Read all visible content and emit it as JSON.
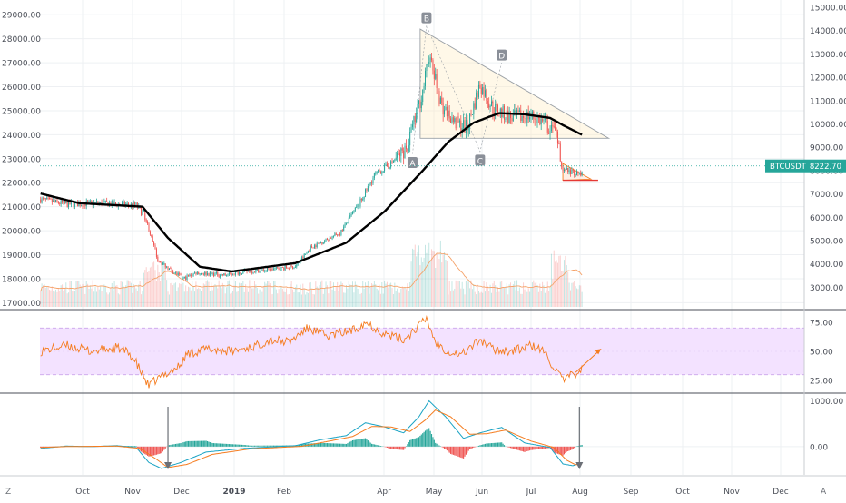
{
  "chart_data": [
    {
      "type": "candlestick",
      "symbol": "BTCUSDT",
      "last_price": "8222.70",
      "left_axis": {
        "ticks": [
          "17000.00",
          "18000.00",
          "19000.00",
          "20000.00",
          "21000.00",
          "22000.00",
          "23000.00",
          "24000.00",
          "25000.00",
          "26000.00",
          "27000.00",
          "28000.00",
          "29000.00"
        ],
        "range": [
          16750,
          29500
        ]
      },
      "right_axis": {
        "ticks": [
          "3000.00",
          "4000.00",
          "5000.00",
          "6000.00",
          "7000.00",
          "8000.00",
          "9000.00",
          "10000.00",
          "11000.00",
          "12000.00",
          "13000.00",
          "14000.00",
          "15000.00"
        ]
      },
      "time_axis": [
        "Oct",
        "Nov",
        "Dec",
        "2019",
        "Feb",
        "Apr",
        "May",
        "Jun",
        "Jul",
        "Aug",
        "Sep",
        "Oct",
        "Nov",
        "Dec"
      ],
      "time_axis_bold": "2019",
      "price_anchors": [
        {
          "t": 0,
          "p": 21300
        },
        {
          "t": 20,
          "p": 21100
        },
        {
          "t": 45,
          "p": 21150
        },
        {
          "t": 75,
          "p": 21050
        },
        {
          "t": 82,
          "p": 20600
        },
        {
          "t": 92,
          "p": 18800
        },
        {
          "t": 100,
          "p": 18450
        },
        {
          "t": 112,
          "p": 18000
        },
        {
          "t": 122,
          "p": 18250
        },
        {
          "t": 145,
          "p": 18150
        },
        {
          "t": 160,
          "p": 18300
        },
        {
          "t": 175,
          "p": 18350
        },
        {
          "t": 200,
          "p": 18500
        },
        {
          "t": 212,
          "p": 19300
        },
        {
          "t": 235,
          "p": 19900
        },
        {
          "t": 250,
          "p": 21100
        },
        {
          "t": 262,
          "p": 22300
        },
        {
          "t": 275,
          "p": 22800
        },
        {
          "t": 288,
          "p": 23500
        },
        {
          "t": 300,
          "p": 25800
        },
        {
          "t": 305,
          "p": 27300
        },
        {
          "t": 315,
          "p": 25200
        },
        {
          "t": 325,
          "p": 24500
        },
        {
          "t": 335,
          "p": 24300
        },
        {
          "t": 345,
          "p": 26100
        },
        {
          "t": 355,
          "p": 25100
        },
        {
          "t": 370,
          "p": 24700
        },
        {
          "t": 385,
          "p": 24800
        },
        {
          "t": 395,
          "p": 24500
        },
        {
          "t": 405,
          "p": 23900
        },
        {
          "t": 410,
          "p": 22500
        },
        {
          "t": 425,
          "p": 22400
        }
      ],
      "moving_average": {
        "color": "#000000",
        "anchors": [
          {
            "t": 0,
            "p": 21550
          },
          {
            "t": 30,
            "p": 21150
          },
          {
            "t": 80,
            "p": 21000
          },
          {
            "t": 100,
            "p": 19700
          },
          {
            "t": 125,
            "p": 18500
          },
          {
            "t": 150,
            "p": 18300
          },
          {
            "t": 200,
            "p": 18650
          },
          {
            "t": 240,
            "p": 19500
          },
          {
            "t": 270,
            "p": 20800
          },
          {
            "t": 300,
            "p": 22500
          },
          {
            "t": 320,
            "p": 23700
          },
          {
            "t": 340,
            "p": 24500
          },
          {
            "t": 360,
            "p": 24900
          },
          {
            "t": 380,
            "p": 24850
          },
          {
            "t": 400,
            "p": 24700
          },
          {
            "t": 410,
            "p": 24400
          },
          {
            "t": 425,
            "p": 24000
          }
        ]
      },
      "pattern_points": [
        {
          "label": "A",
          "t": 292,
          "p": 23200
        },
        {
          "label": "B",
          "t": 303,
          "p": 28550
        },
        {
          "label": "C",
          "t": 345,
          "p": 23300
        },
        {
          "label": "D",
          "t": 362,
          "p": 27000
        }
      ],
      "triangle": {
        "apex": {
          "t": 298,
          "p": 28400
        },
        "base_left": {
          "t": 298,
          "p": 23850
        },
        "right": {
          "t": 446,
          "p": 23850
        }
      },
      "pennant": {
        "start_t": 410,
        "top_p": 22800,
        "bottom_p": 22100,
        "end_t": 432,
        "end_p": 22150
      },
      "volume_range": [
        0,
        100
      ]
    },
    {
      "type": "line",
      "indicator": "RSI",
      "ticks": [
        "25.00",
        "50.00",
        "75.00"
      ],
      "range": [
        15,
        85
      ],
      "band": [
        30,
        70
      ],
      "band_color": "#f3e2ff",
      "line_color": "#f57c1f",
      "anchors": [
        {
          "t": 0,
          "p": 50
        },
        {
          "t": 20,
          "p": 55
        },
        {
          "t": 40,
          "p": 50
        },
        {
          "t": 60,
          "p": 53
        },
        {
          "t": 70,
          "p": 48
        },
        {
          "t": 75,
          "p": 40
        },
        {
          "t": 80,
          "p": 30
        },
        {
          "t": 85,
          "p": 20
        },
        {
          "t": 90,
          "p": 25
        },
        {
          "t": 100,
          "p": 32
        },
        {
          "t": 110,
          "p": 38
        },
        {
          "t": 115,
          "p": 48
        },
        {
          "t": 130,
          "p": 52
        },
        {
          "t": 150,
          "p": 50
        },
        {
          "t": 170,
          "p": 55
        },
        {
          "t": 180,
          "p": 60
        },
        {
          "t": 195,
          "p": 58
        },
        {
          "t": 210,
          "p": 70
        },
        {
          "t": 225,
          "p": 63
        },
        {
          "t": 245,
          "p": 68
        },
        {
          "t": 255,
          "p": 75
        },
        {
          "t": 270,
          "p": 65
        },
        {
          "t": 285,
          "p": 60
        },
        {
          "t": 295,
          "p": 70
        },
        {
          "t": 303,
          "p": 78
        },
        {
          "t": 310,
          "p": 58
        },
        {
          "t": 320,
          "p": 50
        },
        {
          "t": 330,
          "p": 47
        },
        {
          "t": 345,
          "p": 60
        },
        {
          "t": 355,
          "p": 52
        },
        {
          "t": 370,
          "p": 50
        },
        {
          "t": 385,
          "p": 55
        },
        {
          "t": 395,
          "p": 50
        },
        {
          "t": 402,
          "p": 38
        },
        {
          "t": 410,
          "p": 25
        },
        {
          "t": 418,
          "p": 30
        },
        {
          "t": 425,
          "p": 35
        }
      ],
      "trend_arrow": {
        "from": {
          "t": 420,
          "p": 32
        },
        "to": {
          "t": 440,
          "p": 52
        }
      }
    },
    {
      "type": "line",
      "indicator": "MACD",
      "ticks": [
        "0.00",
        "1000.00"
      ],
      "range": [
        -620,
        1150
      ],
      "macd_color": "#19a3c4",
      "signal_color": "#f57c1f",
      "hist_up": "#26a69a",
      "hist_down": "#ef5350",
      "macd_anchors": [
        {
          "t": 0,
          "p": -40
        },
        {
          "t": 20,
          "p": 10
        },
        {
          "t": 40,
          "p": 0
        },
        {
          "t": 60,
          "p": 20
        },
        {
          "t": 75,
          "p": -20
        },
        {
          "t": 85,
          "p": -350
        },
        {
          "t": 95,
          "p": -480
        },
        {
          "t": 110,
          "p": -350
        },
        {
          "t": 130,
          "p": -120
        },
        {
          "t": 160,
          "p": -40
        },
        {
          "t": 200,
          "p": 20
        },
        {
          "t": 220,
          "p": 150
        },
        {
          "t": 240,
          "p": 240
        },
        {
          "t": 255,
          "p": 520
        },
        {
          "t": 270,
          "p": 430
        },
        {
          "t": 285,
          "p": 300
        },
        {
          "t": 297,
          "p": 650
        },
        {
          "t": 305,
          "p": 1000
        },
        {
          "t": 318,
          "p": 650
        },
        {
          "t": 332,
          "p": 180
        },
        {
          "t": 345,
          "p": 300
        },
        {
          "t": 362,
          "p": 420
        },
        {
          "t": 380,
          "p": 80
        },
        {
          "t": 400,
          "p": -20
        },
        {
          "t": 410,
          "p": -380
        },
        {
          "t": 418,
          "p": -420
        },
        {
          "t": 425,
          "p": -350
        }
      ],
      "signal_anchors": [
        {
          "t": 0,
          "p": -20
        },
        {
          "t": 20,
          "p": 0
        },
        {
          "t": 40,
          "p": 5
        },
        {
          "t": 60,
          "p": 10
        },
        {
          "t": 78,
          "p": -40
        },
        {
          "t": 90,
          "p": -260
        },
        {
          "t": 100,
          "p": -460
        },
        {
          "t": 115,
          "p": -390
        },
        {
          "t": 135,
          "p": -170
        },
        {
          "t": 165,
          "p": -50
        },
        {
          "t": 205,
          "p": 5
        },
        {
          "t": 225,
          "p": 110
        },
        {
          "t": 245,
          "p": 220
        },
        {
          "t": 260,
          "p": 440
        },
        {
          "t": 275,
          "p": 430
        },
        {
          "t": 290,
          "p": 330
        },
        {
          "t": 302,
          "p": 580
        },
        {
          "t": 310,
          "p": 800
        },
        {
          "t": 322,
          "p": 650
        },
        {
          "t": 337,
          "p": 270
        },
        {
          "t": 350,
          "p": 280
        },
        {
          "t": 365,
          "p": 360
        },
        {
          "t": 385,
          "p": 120
        },
        {
          "t": 403,
          "p": -20
        },
        {
          "t": 413,
          "p": -300
        },
        {
          "t": 420,
          "p": -400
        },
        {
          "t": 425,
          "p": -380
        }
      ],
      "arrows_down_t": [
        100,
        423
      ]
    }
  ],
  "footer": {
    "left_label": "Z",
    "right_label": "A"
  }
}
